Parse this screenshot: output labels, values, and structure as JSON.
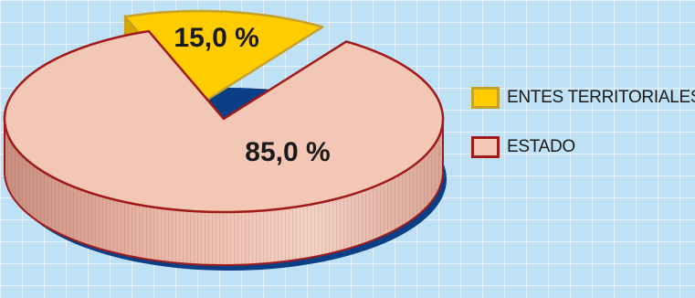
{
  "chart_data": {
    "type": "pie",
    "style": "3d-exploded",
    "slices": [
      {
        "label": "ENTES TERRITORIALES",
        "value": 15.0,
        "display": "15,0 %",
        "color": "#ffcc00",
        "edge": "#c4a22a",
        "side": "#d4a800"
      },
      {
        "label": "ESTADO",
        "value": 85.0,
        "display": "85,0 %",
        "color": "#f2c7b6",
        "edge": "#a01a1a",
        "side": "#d4a090"
      }
    ],
    "shadow_color": "#0a3f86",
    "legend_position": "right"
  }
}
